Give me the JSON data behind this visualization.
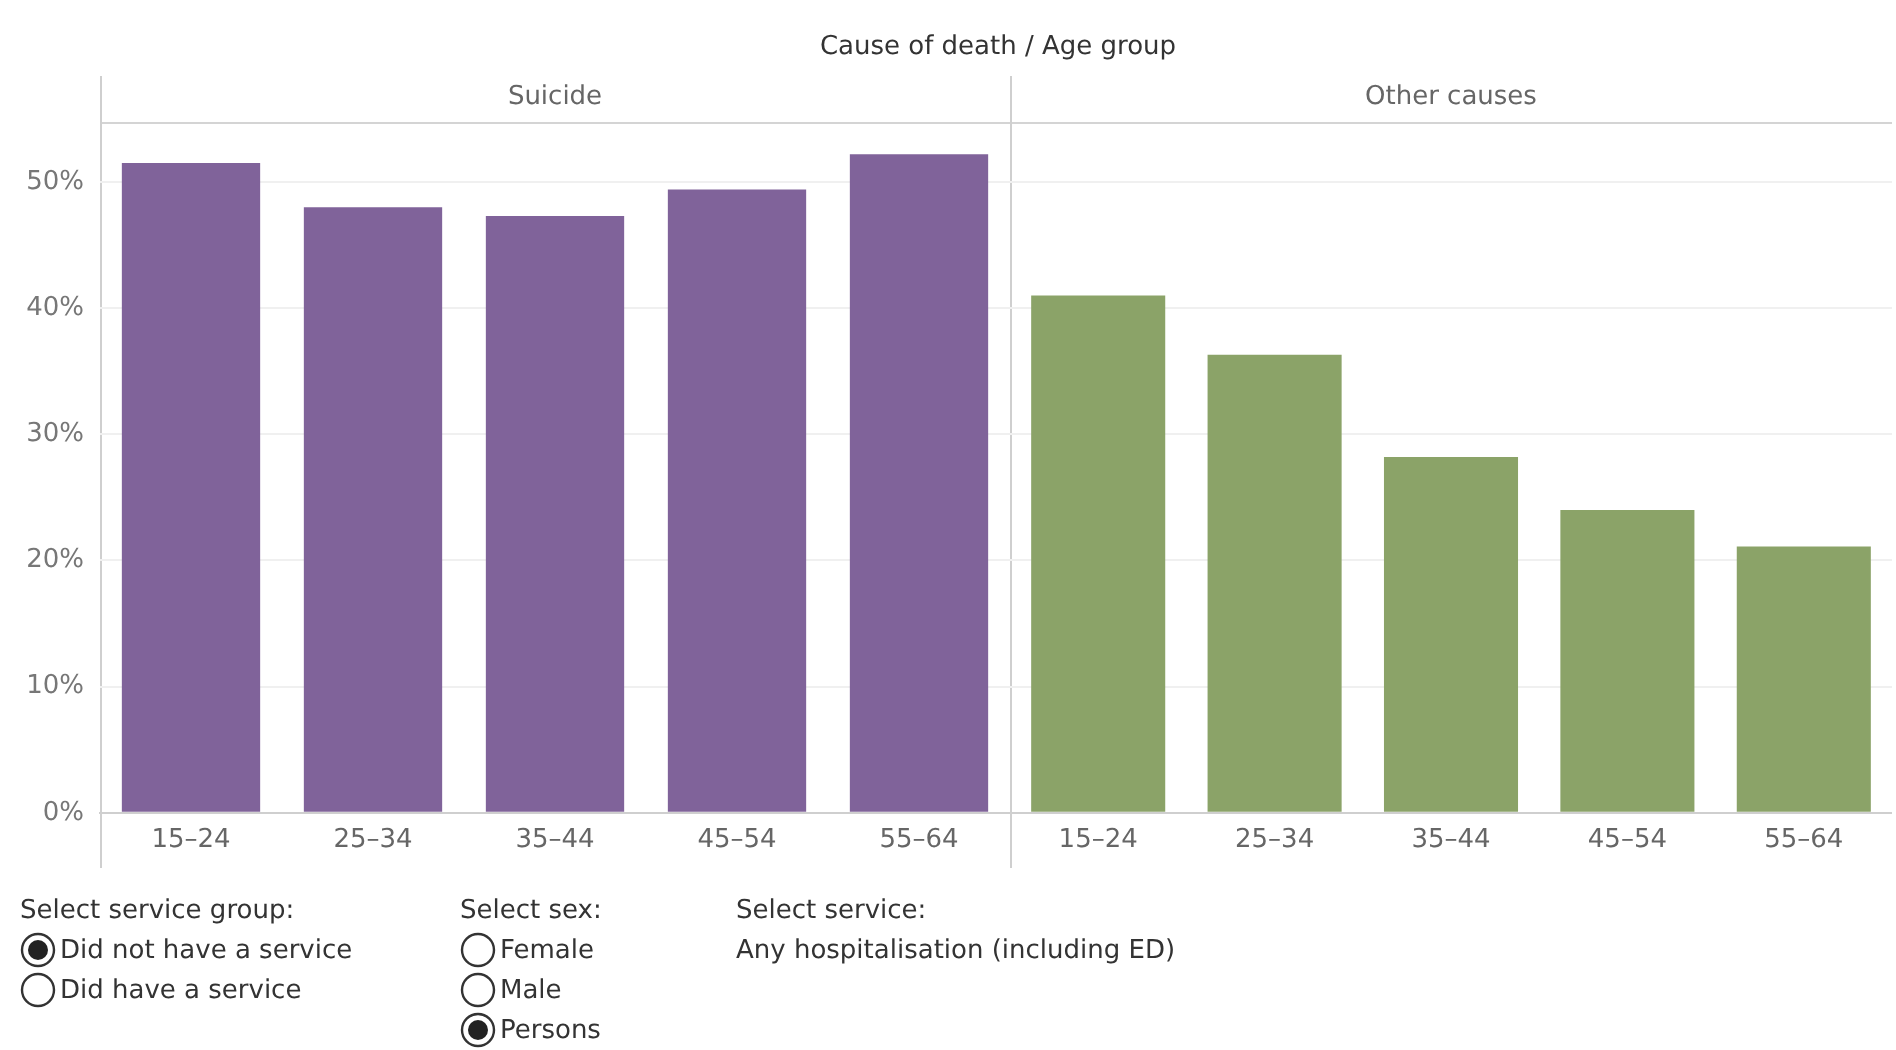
{
  "chart_data": [
    {
      "type": "bar",
      "xlabel": "Cause of death / Age group",
      "title": "Suicide",
      "categories": [
        "15–24",
        "25–34",
        "35–44",
        "45–54",
        "55–64"
      ],
      "values": [
        51.5,
        48.0,
        47.3,
        49.4,
        52.2
      ],
      "color": "#80639a",
      "ylim": [
        0,
        54.6
      ],
      "yticks": [
        {
          "value": 0,
          "label": "0%"
        },
        {
          "value": 10,
          "label": "10%"
        },
        {
          "value": 20,
          "label": "20%"
        },
        {
          "value": 30,
          "label": "30%"
        },
        {
          "value": 40,
          "label": "40%"
        },
        {
          "value": 50,
          "label": "50%"
        }
      ],
      "grid": "y"
    },
    {
      "type": "bar",
      "title": "Other causes",
      "categories": [
        "15–24",
        "25–34",
        "35–44",
        "45–54",
        "55–64"
      ],
      "values": [
        41.0,
        36.3,
        28.2,
        24.0,
        21.1
      ],
      "color": "#8ba368",
      "ylim": [
        0,
        54.6
      ],
      "yticks": [
        {
          "value": 0,
          "label": null
        },
        {
          "value": 10,
          "label": null
        },
        {
          "value": 20,
          "label": null
        },
        {
          "value": 30,
          "label": null
        },
        {
          "value": 40,
          "label": null
        },
        {
          "value": 50,
          "label": null
        }
      ],
      "grid": "y",
      "tick_labels": "x",
      "annotations": [
        "Select service group:",
        "Did not have a service",
        "Did have a service",
        "Select sex:",
        "Female",
        "Male",
        "Persons",
        "Select service:",
        "Any hospitalisation (including ED)"
      ]
    }
  ]
}
